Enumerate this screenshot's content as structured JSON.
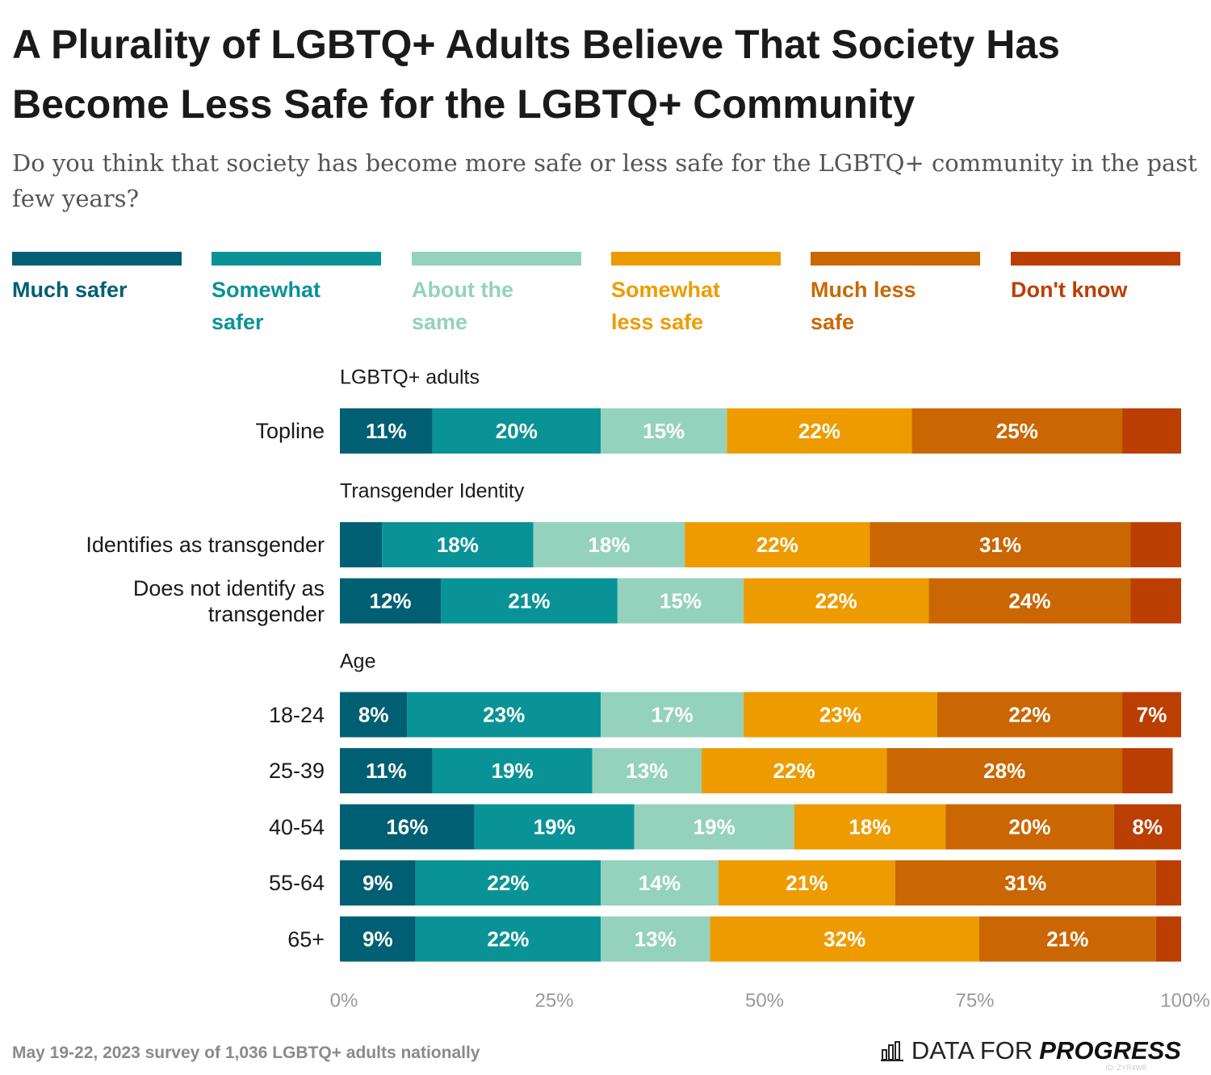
{
  "chart_data": {
    "type": "stacked-bar",
    "title": "A Plurality of LGBTQ+ Adults Believe That Society Has Become Less Safe for the LGBTQ+ Community",
    "subtitle": "Do you think that society has become more safe or less safe for the LGBTQ+ community in the past few years?",
    "groups": [
      {
        "label": "LGBTQ+ adults",
        "categories": [
          "Topline"
        ]
      },
      {
        "label": "Transgender Identity",
        "categories": [
          "Identifies as transgender",
          "Does not identify as transgender"
        ]
      },
      {
        "label": "Age",
        "categories": [
          "18-24",
          "25-39",
          "40-54",
          "55-64",
          "65+"
        ]
      }
    ],
    "series": [
      {
        "name": "Much safer",
        "color": "#005f73",
        "values": [
          11,
          5,
          12,
          8,
          11,
          16,
          9,
          9
        ],
        "value_labels": [
          "11%",
          null,
          "12%",
          "8%",
          "11%",
          "16%",
          "9%",
          "9%"
        ]
      },
      {
        "name": "Somewhat safer",
        "color": "#0a9396",
        "values": [
          20,
          18,
          21,
          23,
          19,
          19,
          22,
          22
        ],
        "value_labels": [
          "20%",
          "18%",
          "21%",
          "23%",
          "19%",
          "19%",
          "22%",
          "22%"
        ]
      },
      {
        "name": "About the same",
        "color": "#94d2bd",
        "values": [
          15,
          18,
          15,
          17,
          13,
          19,
          14,
          13
        ],
        "value_labels": [
          "15%",
          "18%",
          "15%",
          "17%",
          "13%",
          "19%",
          "14%",
          "13%"
        ]
      },
      {
        "name": "Somewhat less safe",
        "color": "#ee9b00",
        "values": [
          22,
          22,
          22,
          23,
          22,
          18,
          21,
          32
        ],
        "value_labels": [
          "22%",
          "22%",
          "22%",
          "23%",
          "22%",
          "18%",
          "21%",
          "32%"
        ]
      },
      {
        "name": "Much less safe",
        "color": "#ca6702",
        "values": [
          25,
          31,
          24,
          22,
          28,
          20,
          31,
          21
        ],
        "value_labels": [
          "25%",
          "31%",
          "24%",
          "22%",
          "28%",
          "20%",
          "31%",
          "21%"
        ]
      },
      {
        "name": "Don't know",
        "color": "#bb3e03",
        "values": [
          7,
          6,
          6,
          7,
          6,
          8,
          3,
          3
        ],
        "value_labels": [
          null,
          null,
          null,
          "7%",
          null,
          "8%",
          null,
          null
        ]
      }
    ],
    "xlim": [
      0,
      100
    ],
    "xticks": [
      {
        "value": 0,
        "label": "0%"
      },
      {
        "value": 25,
        "label": "25%"
      },
      {
        "value": 50,
        "label": "50%"
      },
      {
        "value": 75,
        "label": "75%"
      },
      {
        "value": 100,
        "label": "100%"
      }
    ],
    "source": "May 19-22, 2023 survey of 1,036 LGBTQ+ adults nationally",
    "brand": [
      "DATA FOR",
      "PROGRESS"
    ],
    "id": "ID: ZYR4W8"
  }
}
